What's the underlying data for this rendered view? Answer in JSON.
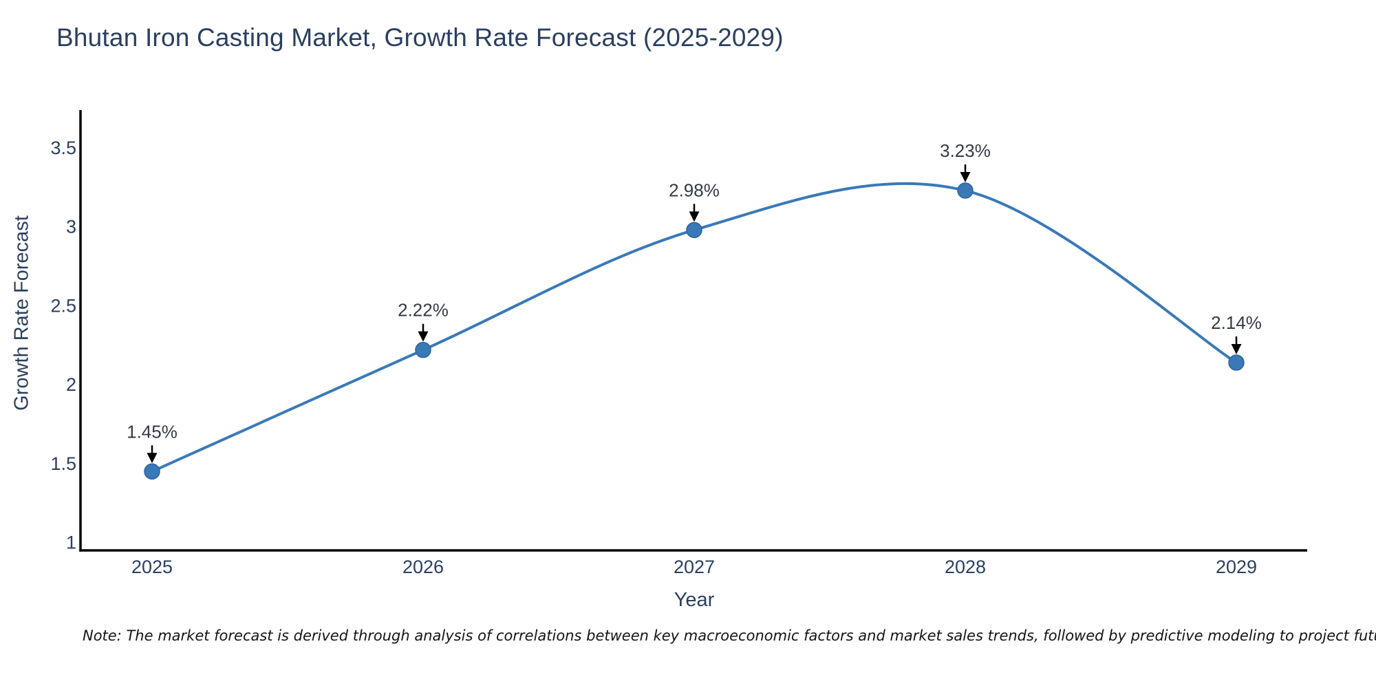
{
  "title": "Bhutan Iron Casting Market, Growth Rate Forecast (2025-2029)",
  "note": "Note: The market forecast is derived through analysis of correlations between key macroeconomic factors and market sales trends, followed by predictive modeling to project future sales",
  "chart_data": {
    "type": "line",
    "line_shape": "spline",
    "title": "Bhutan Iron Casting Market, Growth Rate Forecast (2025-2029)",
    "xlabel": "Year",
    "ylabel": "Growth Rate Forecast",
    "categories": [
      "2025",
      "2026",
      "2027",
      "2028",
      "2029"
    ],
    "series": [
      {
        "name": "Growth Rate Forecast",
        "values": [
          1.45,
          2.22,
          2.98,
          3.23,
          2.14
        ],
        "point_labels": [
          "1.45%",
          "2.22%",
          "2.98%",
          "3.23%",
          "2.14%"
        ]
      }
    ],
    "yticks": [
      1,
      1.5,
      2,
      2.5,
      3,
      3.5
    ],
    "ylim": [
      0.95,
      3.74
    ],
    "grid": false,
    "legend_position": "none",
    "annotations": "value labels with black down-arrows above each point",
    "colors": {
      "line": "#3a79b8",
      "marker": "#3a79b8",
      "marker_stroke": "#2e6399",
      "axis": "#000000",
      "tick_text": "#2a3f5f",
      "annotation_text": "#333a45",
      "arrow": "#000000",
      "title_text": "#2a3f5f"
    }
  }
}
